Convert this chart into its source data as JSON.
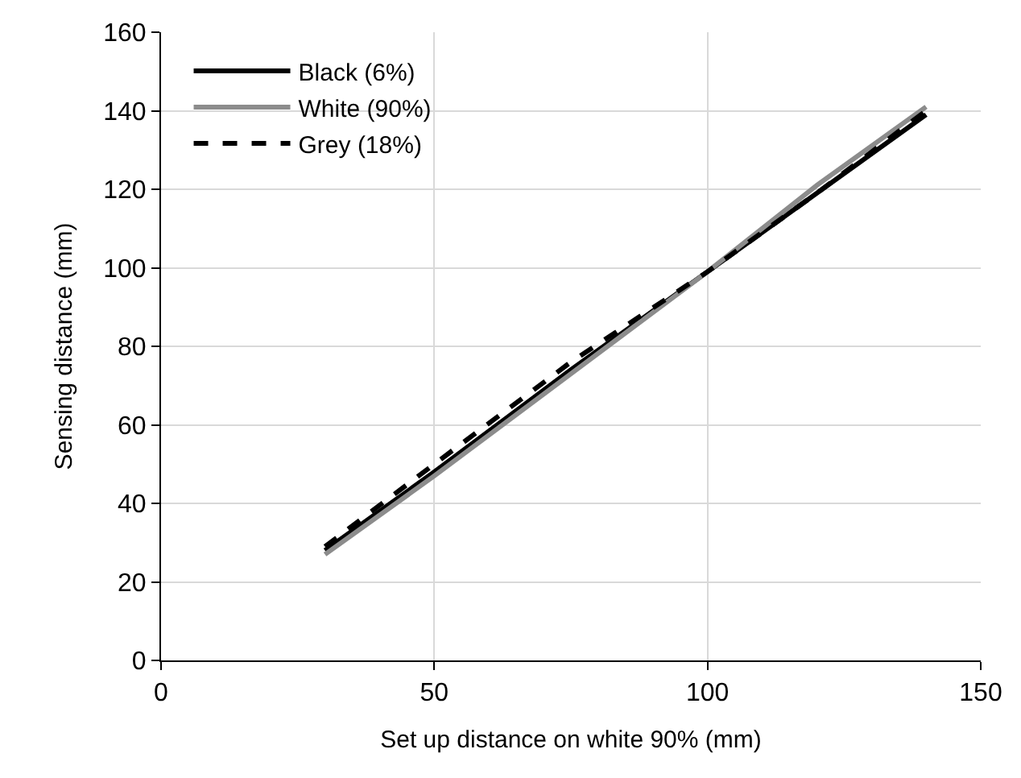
{
  "chart_data": {
    "type": "line",
    "xlabel": "Set up distance on white 90% (mm)",
    "ylabel": "Sensing distance (mm)",
    "x": [
      30,
      50,
      75,
      100,
      120,
      140
    ],
    "series": [
      {
        "name": "Black (6%)",
        "color": "#000000",
        "values": [
          28,
          48,
          74,
          99,
          119,
          139
        ],
        "line_style": "solid"
      },
      {
        "name": "White (90%)",
        "color": "#8c8c8c",
        "values": [
          27,
          47,
          73,
          99,
          121,
          141
        ],
        "line_style": "solid"
      },
      {
        "name": "Grey (18%)",
        "color": "#000000",
        "values": [
          29,
          50,
          76,
          99,
          119,
          140
        ],
        "line_style": "dashed"
      }
    ],
    "xlim": [
      0,
      150
    ],
    "xticks": [
      0,
      50,
      100,
      150
    ],
    "ylim": [
      0,
      160
    ],
    "yticks": [
      0,
      20,
      40,
      60,
      80,
      100,
      120,
      140,
      160
    ],
    "grid": true,
    "legend": "top left",
    "marker": "none"
  }
}
